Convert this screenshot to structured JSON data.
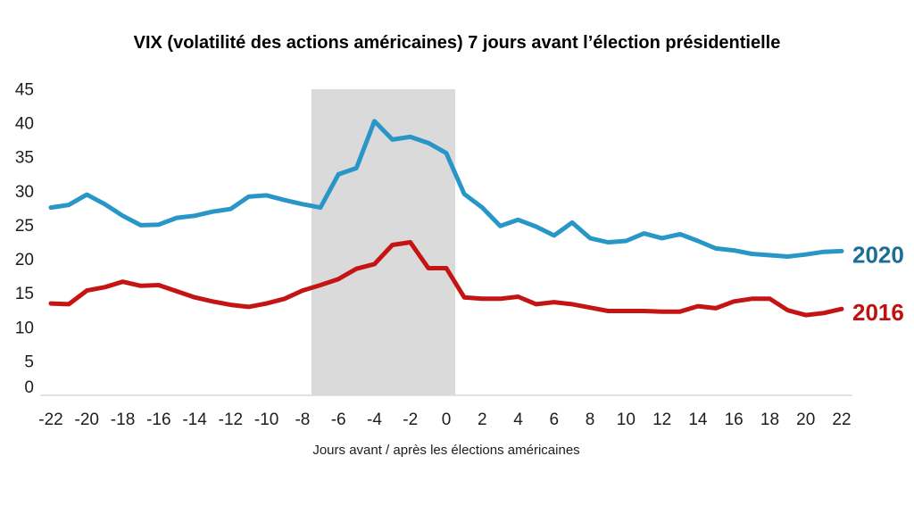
{
  "title": "VIX (volatilité des actions américaines) 7 jours avant l’élection présidentielle",
  "colors": {
    "background": "#ffffff",
    "axis_line": "#d9d9d9",
    "tick_text": "#1d1d1b",
    "title_text": "#000000",
    "band": "#dbdada"
  },
  "chart_data": {
    "type": "line",
    "title": "VIX (volatilité des actions américaines) 7 jours avant l’élection présidentielle",
    "xlabel": "Jours avant / après les élections américaines",
    "ylabel": "",
    "xlim": [
      -22,
      22
    ],
    "ylim": [
      0,
      45
    ],
    "xticks": [
      -22,
      -20,
      -18,
      -16,
      -14,
      -12,
      -10,
      -8,
      -6,
      -4,
      -2,
      0,
      2,
      4,
      6,
      8,
      10,
      12,
      14,
      16,
      18,
      20,
      22
    ],
    "yticks": [
      0,
      5,
      10,
      15,
      20,
      25,
      30,
      35,
      40,
      45
    ],
    "grid": false,
    "legend_position": "right-end-of-lines",
    "shaded_region": {
      "x0": -7.5,
      "x1": 0.5,
      "color": "#dbdada"
    },
    "x": [
      -22,
      -21,
      -20,
      -19,
      -18,
      -17,
      -16,
      -15,
      -14,
      -13,
      -12,
      -11,
      -10,
      -9,
      -8,
      -7,
      -6,
      -5,
      -4,
      -3,
      -2,
      -1,
      0,
      1,
      2,
      3,
      4,
      5,
      6,
      7,
      8,
      9,
      10,
      11,
      12,
      13,
      14,
      15,
      16,
      17,
      18,
      19,
      20,
      21,
      22
    ],
    "series": [
      {
        "name": "2020",
        "color": "#2996c8",
        "label_color": "#1a6e96",
        "values": [
          27.6,
          28.0,
          29.5,
          28.1,
          26.4,
          25.0,
          25.1,
          26.1,
          26.4,
          27.0,
          27.4,
          29.2,
          29.4,
          28.7,
          28.1,
          27.6,
          32.5,
          33.4,
          40.3,
          37.6,
          38.0,
          37.1,
          35.6,
          29.6,
          27.6,
          24.9,
          25.8,
          24.8,
          23.5,
          25.4,
          23.1,
          22.5,
          22.7,
          23.8,
          23.1,
          23.7,
          22.7,
          21.6,
          21.3,
          20.8,
          20.6,
          20.4,
          20.7,
          21.1,
          21.2
        ]
      },
      {
        "name": "2016",
        "color": "#c51414",
        "label_color": "#c11010",
        "values": [
          13.5,
          13.4,
          15.4,
          15.9,
          16.7,
          16.1,
          16.2,
          15.3,
          14.4,
          13.8,
          13.3,
          13.0,
          13.5,
          14.2,
          15.4,
          16.2,
          17.1,
          18.6,
          19.3,
          22.1,
          22.5,
          18.7,
          18.7,
          14.4,
          14.2,
          14.2,
          14.5,
          13.4,
          13.7,
          13.4,
          12.9,
          12.4,
          12.4,
          12.4,
          12.3,
          12.3,
          13.1,
          12.8,
          13.8,
          14.2,
          14.2,
          12.5,
          11.8,
          12.1,
          12.7
        ]
      }
    ]
  }
}
